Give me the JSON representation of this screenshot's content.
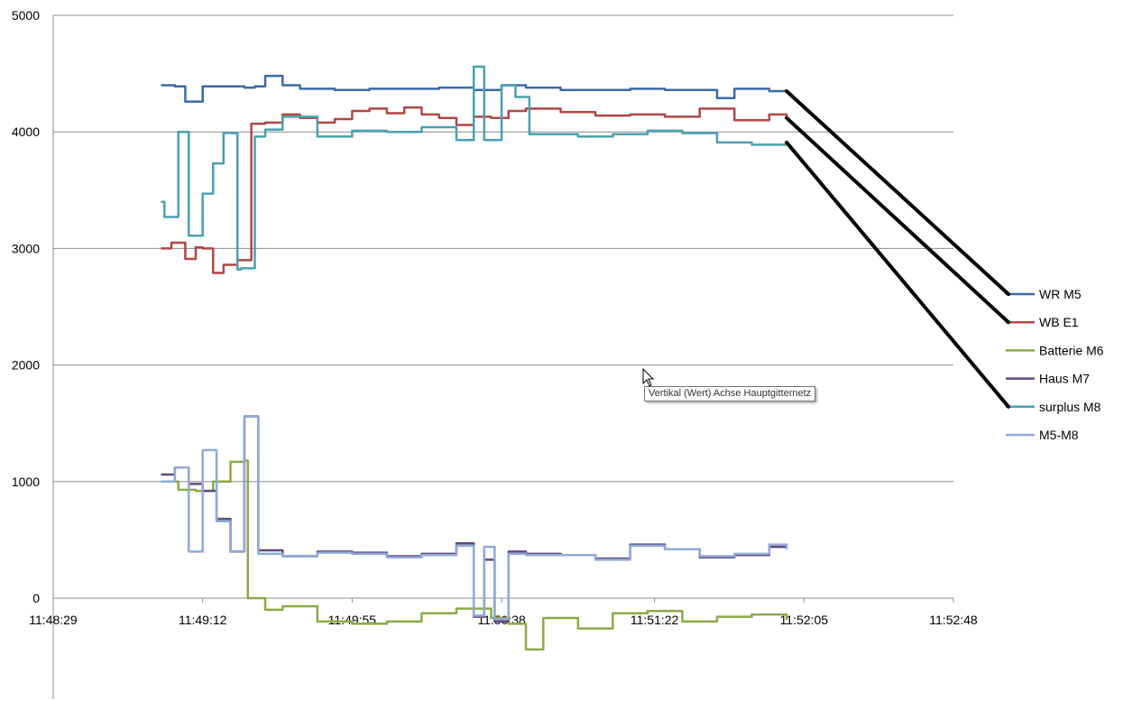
{
  "chart_data": {
    "type": "line",
    "title": "",
    "xlabel": "",
    "ylabel": "",
    "ylim": [
      -900,
      5000
    ],
    "yticks": [
      0,
      1000,
      2000,
      3000,
      4000,
      5000
    ],
    "xticks": [
      "11:48:29",
      "11:49:12",
      "11:49:55",
      "11:50:38",
      "11:51:22",
      "11:52:05",
      "11:52:48"
    ],
    "grid": "horizontal major gridlines",
    "legend_position": "right",
    "series": [
      {
        "name": "WR M5",
        "color": "#3a6aa6",
        "x": [
          "11:49:00",
          "11:49:04",
          "11:49:07",
          "11:49:12",
          "11:49:24",
          "11:49:27",
          "11:49:30",
          "11:49:35",
          "11:49:40",
          "11:49:50",
          "11:50:00",
          "11:50:10",
          "11:50:20",
          "11:50:30",
          "11:50:38",
          "11:50:45",
          "11:50:55",
          "11:51:05",
          "11:51:15",
          "11:51:25",
          "11:51:35",
          "11:51:40",
          "11:51:45",
          "11:51:55",
          "11:52:00"
        ],
        "values": [
          4400,
          4390,
          4260,
          4390,
          4380,
          4390,
          4480,
          4400,
          4370,
          4360,
          4370,
          4370,
          4380,
          4360,
          4400,
          4380,
          4360,
          4360,
          4370,
          4360,
          4360,
          4290,
          4370,
          4350,
          4350
        ]
      },
      {
        "name": "WB E1",
        "color": "#b04744",
        "x": [
          "11:49:00",
          "11:49:03",
          "11:49:07",
          "11:49:10",
          "11:49:12",
          "11:49:15",
          "11:49:18",
          "11:49:22",
          "11:49:26",
          "11:49:30",
          "11:49:35",
          "11:49:40",
          "11:49:45",
          "11:49:50",
          "11:49:55",
          "11:50:00",
          "11:50:05",
          "11:50:10",
          "11:50:15",
          "11:50:20",
          "11:50:25",
          "11:50:30",
          "11:50:35",
          "11:50:40",
          "11:50:45",
          "11:50:55",
          "11:51:05",
          "11:51:15",
          "11:51:25",
          "11:51:35",
          "11:51:45",
          "11:51:55",
          "11:52:00"
        ],
        "values": [
          3000,
          3050,
          2910,
          3010,
          3000,
          2790,
          2860,
          2900,
          4070,
          4080,
          4150,
          4120,
          4080,
          4110,
          4180,
          4200,
          4160,
          4210,
          4150,
          4120,
          4060,
          4130,
          4120,
          4180,
          4200,
          4170,
          4140,
          4150,
          4130,
          4200,
          4100,
          4150,
          4120
        ]
      },
      {
        "name": "Batterie M6",
        "color": "#8aaa46",
        "x": [
          "11:49:00",
          "11:49:05",
          "11:49:10",
          "11:49:15",
          "11:49:20",
          "11:49:24",
          "11:49:25",
          "11:49:30",
          "11:49:35",
          "11:49:45",
          "11:49:55",
          "11:50:05",
          "11:50:15",
          "11:50:25",
          "11:50:35",
          "11:50:40",
          "11:50:45",
          "11:50:50",
          "11:51:00",
          "11:51:10",
          "11:51:20",
          "11:51:30",
          "11:51:40",
          "11:51:50",
          "11:52:00"
        ],
        "values": [
          1000,
          930,
          920,
          1000,
          1170,
          1180,
          0,
          -100,
          -70,
          -200,
          -220,
          -200,
          -130,
          -90,
          -170,
          -220,
          -440,
          -170,
          -260,
          -130,
          -110,
          -200,
          -160,
          -140,
          -190
        ]
      },
      {
        "name": "Haus M7",
        "color": "#604a7b",
        "x": [
          "11:49:00",
          "11:49:04",
          "11:49:08",
          "11:49:12",
          "11:49:16",
          "11:49:20",
          "11:49:24",
          "11:49:28",
          "11:49:35",
          "11:49:45",
          "11:49:55",
          "11:50:05",
          "11:50:15",
          "11:50:25",
          "11:50:30",
          "11:50:33",
          "11:50:36",
          "11:50:40",
          "11:50:45",
          "11:50:55",
          "11:51:05",
          "11:51:15",
          "11:51:25",
          "11:51:35",
          "11:51:45",
          "11:51:55",
          "11:52:00"
        ],
        "values": [
          1060,
          1120,
          980,
          920,
          680,
          400,
          1560,
          410,
          360,
          400,
          390,
          360,
          380,
          470,
          -160,
          330,
          -200,
          400,
          380,
          370,
          340,
          460,
          420,
          350,
          370,
          440,
          430
        ]
      },
      {
        "name": "surplus M8",
        "color": "#4aa0b0",
        "x": [
          "11:49:00",
          "11:49:01",
          "11:49:05",
          "11:49:08",
          "11:49:12",
          "11:49:15",
          "11:49:18",
          "11:49:22",
          "11:49:23",
          "11:49:27",
          "11:49:30",
          "11:49:35",
          "11:49:45",
          "11:49:55",
          "11:50:05",
          "11:50:15",
          "11:50:25",
          "11:50:30",
          "11:50:33",
          "11:50:38",
          "11:50:42",
          "11:50:46",
          "11:50:50",
          "11:51:00",
          "11:51:10",
          "11:51:20",
          "11:51:30",
          "11:51:40",
          "11:51:50",
          "11:52:00"
        ],
        "values": [
          3400,
          3270,
          4000,
          3110,
          3470,
          3730,
          3990,
          2820,
          2830,
          3960,
          4020,
          4130,
          3960,
          4010,
          4000,
          4040,
          3930,
          4560,
          3930,
          4400,
          4300,
          3980,
          3980,
          3960,
          3980,
          4010,
          3990,
          3910,
          3890,
          3910
        ]
      },
      {
        "name": "M5-M8",
        "color": "#92a9d6",
        "x": [
          "11:49:00",
          "11:49:04",
          "11:49:08",
          "11:49:12",
          "11:49:16",
          "11:49:20",
          "11:49:24",
          "11:49:28",
          "11:49:35",
          "11:49:45",
          "11:49:55",
          "11:50:05",
          "11:50:15",
          "11:50:25",
          "11:50:30",
          "11:50:33",
          "11:50:36",
          "11:50:40",
          "11:50:45",
          "11:50:55",
          "11:51:05",
          "11:51:15",
          "11:51:25",
          "11:51:35",
          "11:51:45",
          "11:51:55",
          "11:52:00"
        ],
        "values": [
          1000,
          1120,
          400,
          1270,
          660,
          400,
          1560,
          380,
          360,
          390,
          380,
          350,
          370,
          450,
          -150,
          440,
          -180,
          380,
          370,
          370,
          330,
          450,
          420,
          360,
          380,
          460,
          420
        ]
      }
    ]
  },
  "tooltip": {
    "text": "Vertikal (Wert) Achse Hauptgitternetz"
  }
}
